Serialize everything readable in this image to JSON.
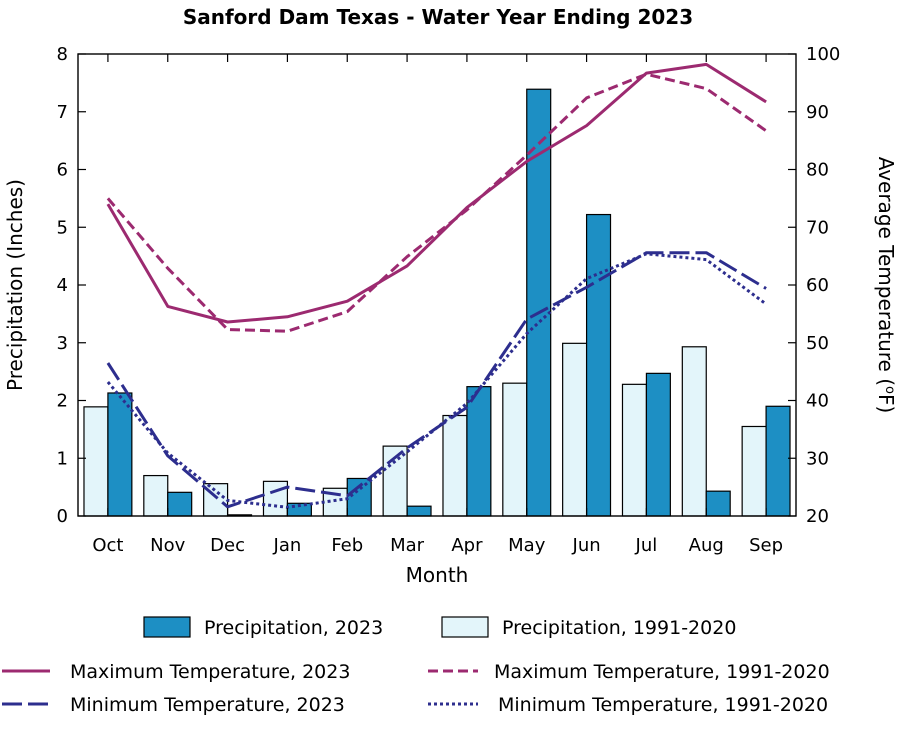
{
  "chart_data": {
    "type": "bar+line",
    "title": "Sanford Dam Texas - Water Year Ending 2023",
    "xlabel": "Month",
    "ylabel_left": "Precipitation (Inches)",
    "ylabel_right_prefix": "Average Temperature (",
    "ylabel_right_deg": "o",
    "ylabel_right_suffix": "F)",
    "ylim_left": [
      0,
      8
    ],
    "ylim_right": [
      20,
      100
    ],
    "yticks_left": [
      "0",
      "1",
      "2",
      "3",
      "4",
      "5",
      "6",
      "7",
      "8"
    ],
    "yticks_right": [
      "20",
      "30",
      "40",
      "50",
      "60",
      "70",
      "80",
      "90",
      "100"
    ],
    "categories": [
      "Oct",
      "Nov",
      "Dec",
      "Jan",
      "Feb",
      "Mar",
      "Apr",
      "May",
      "Jun",
      "Jul",
      "Aug",
      "Sep"
    ],
    "bar_series": [
      {
        "name": "Precipitation, 1991-2020",
        "color": "#e3f5fa",
        "values": [
          1.89,
          0.7,
          0.56,
          0.6,
          0.48,
          1.21,
          1.74,
          2.3,
          2.99,
          2.28,
          2.93,
          1.55
        ]
      },
      {
        "name": "Precipitation, 2023",
        "color": "#1d8fc4",
        "values": [
          2.13,
          0.41,
          0.02,
          0.22,
          0.65,
          0.17,
          2.24,
          7.39,
          5.22,
          2.47,
          0.43,
          1.9
        ]
      }
    ],
    "line_series": [
      {
        "name": "Maximum Temperature, 2023",
        "color": "#9c2a70",
        "style": "solid",
        "values": [
          74.0,
          56.3,
          53.6,
          54.5,
          57.2,
          63.3,
          73.4,
          81.4,
          87.6,
          96.7,
          98.2,
          91.7
        ]
      },
      {
        "name": "Maximum Temperature, 1991-2020",
        "color": "#9c2a70",
        "style": "dashed",
        "values": [
          75.0,
          62.9,
          52.3,
          52.0,
          55.4,
          64.9,
          73.0,
          82.5,
          92.4,
          96.5,
          94.0,
          86.7
        ]
      },
      {
        "name": "Minimum Temperature, 2023",
        "color": "#2d2e8e",
        "style": "longdash",
        "values": [
          46.5,
          30.4,
          21.6,
          25.0,
          23.5,
          31.8,
          38.8,
          54.1,
          59.6,
          65.6,
          65.6,
          59.4
        ]
      },
      {
        "name": "Minimum Temperature, 1991-2020",
        "color": "#2d2e8e",
        "style": "dotted",
        "values": [
          43.2,
          30.9,
          22.7,
          21.5,
          23.0,
          31.1,
          39.5,
          51.6,
          61.1,
          65.4,
          64.4,
          56.7
        ]
      }
    ],
    "legend_placement": "bottom"
  }
}
